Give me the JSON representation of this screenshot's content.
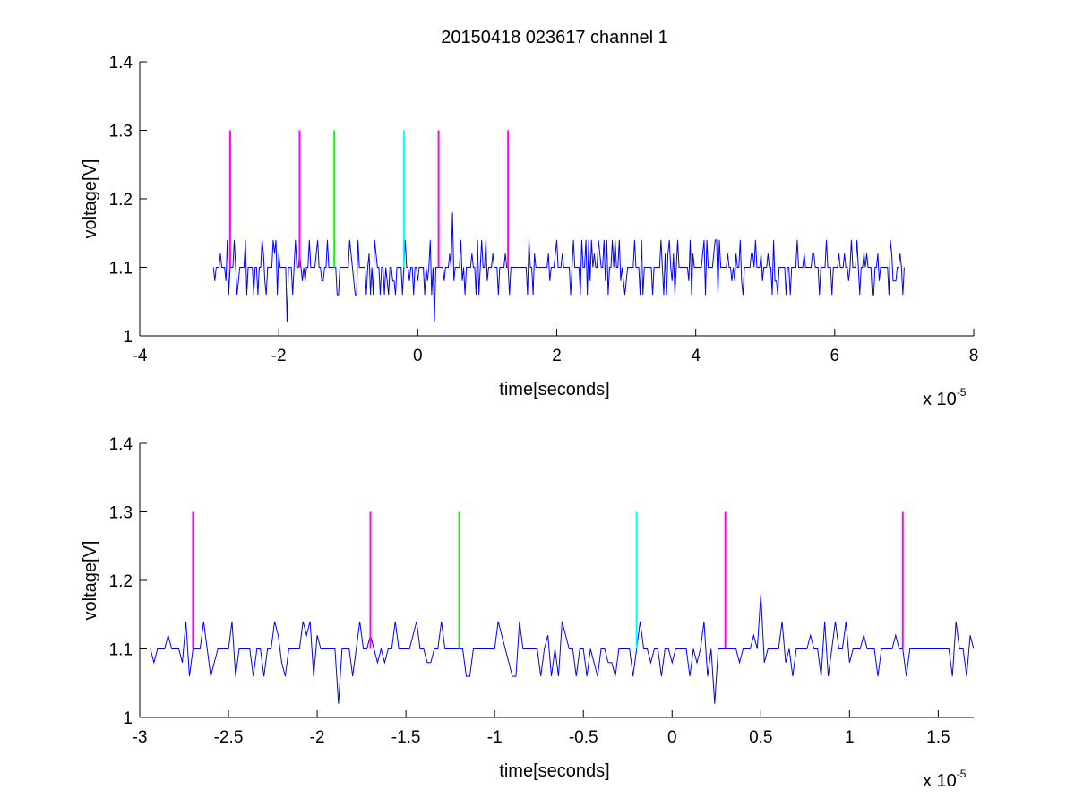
{
  "figure": {
    "title": "20150418 023617 channel 1"
  },
  "chart_data": [
    {
      "type": "line",
      "title": "20150418 023617 channel 1",
      "xlabel": "time[seconds]",
      "ylabel": "voltage[V]",
      "x_exponent_label": "x 10",
      "x_exponent_power": "-5",
      "x_scale": 1e-05,
      "xlim": [
        -4,
        8
      ],
      "ylim": [
        1,
        1.4
      ],
      "xticks": [
        -4,
        -2,
        0,
        2,
        4,
        6,
        8
      ],
      "xtick_labels": [
        "-4",
        "-2",
        "0",
        "2",
        "4",
        "6",
        "8"
      ],
      "yticks": [
        1,
        1.1,
        1.2,
        1.3,
        1.4
      ],
      "ytick_labels": [
        "1",
        "1.1",
        "1.2",
        "1.3",
        "1.4"
      ],
      "box": "left-bottom",
      "grid": false,
      "series": [
        {
          "kind": "noise-trace",
          "color": "#0000ff",
          "x_range": [
            -2.94,
            7.0
          ],
          "baseline": 1.1,
          "levels": [
            1.06,
            1.08,
            1.1,
            1.12,
            1.14
          ],
          "features": [
            {
              "x": -1.88,
              "y": 1.02
            },
            {
              "x": 0.24,
              "y": 1.02
            },
            {
              "x": 0.5,
              "y": 1.18
            }
          ]
        }
      ],
      "markers": [
        {
          "x": -2.7,
          "y_from": 1.1,
          "y_to": 1.3,
          "color": "#ff00ff"
        },
        {
          "x": -1.7,
          "y_from": 1.1,
          "y_to": 1.3,
          "color": "#ff00ff"
        },
        {
          "x": -1.2,
          "y_from": 1.1,
          "y_to": 1.3,
          "color": "#00ff00"
        },
        {
          "x": -0.2,
          "y_from": 1.1,
          "y_to": 1.3,
          "color": "#00ffff"
        },
        {
          "x": 0.3,
          "y_from": 1.1,
          "y_to": 1.3,
          "color": "#ff00ff"
        },
        {
          "x": 1.3,
          "y_from": 1.1,
          "y_to": 1.3,
          "color": "#ff00ff"
        }
      ]
    },
    {
      "type": "line",
      "title": "",
      "xlabel": "time[seconds]",
      "ylabel": "voltage[V]",
      "x_exponent_label": "x 10",
      "x_exponent_power": "-5",
      "x_scale": 1e-05,
      "xlim": [
        -3.0,
        1.7
      ],
      "ylim": [
        1,
        1.4
      ],
      "xticks": [
        -3,
        -2.5,
        -2,
        -1.5,
        -1,
        -0.5,
        0,
        0.5,
        1,
        1.5
      ],
      "xtick_labels": [
        "-3",
        "-2.5",
        "-2",
        "-1.5",
        "-1",
        "-0.5",
        "0",
        "0.5",
        "1",
        "1.5"
      ],
      "yticks": [
        1,
        1.1,
        1.2,
        1.3,
        1.4
      ],
      "ytick_labels": [
        "1",
        "1.1",
        "1.2",
        "1.3",
        "1.4"
      ],
      "box": "left-bottom",
      "grid": false,
      "series": [
        {
          "kind": "noise-trace",
          "color": "#0000ff",
          "x_range": [
            -2.94,
            1.7
          ],
          "baseline": 1.1,
          "levels": [
            1.06,
            1.08,
            1.1,
            1.12,
            1.14
          ],
          "features": [
            {
              "x": -1.88,
              "y": 1.02
            },
            {
              "x": 0.24,
              "y": 1.02
            },
            {
              "x": 0.5,
              "y": 1.18
            }
          ]
        }
      ],
      "markers": [
        {
          "x": -2.7,
          "y_from": 1.1,
          "y_to": 1.3,
          "color": "#ff00ff"
        },
        {
          "x": -1.7,
          "y_from": 1.1,
          "y_to": 1.3,
          "color": "#ff00ff"
        },
        {
          "x": -1.2,
          "y_from": 1.1,
          "y_to": 1.3,
          "color": "#00ff00"
        },
        {
          "x": -0.2,
          "y_from": 1.1,
          "y_to": 1.3,
          "color": "#00ffff"
        },
        {
          "x": 0.3,
          "y_from": 1.1,
          "y_to": 1.3,
          "color": "#ff00ff"
        },
        {
          "x": 1.3,
          "y_from": 1.1,
          "y_to": 1.3,
          "color": "#ff00ff"
        }
      ]
    }
  ]
}
